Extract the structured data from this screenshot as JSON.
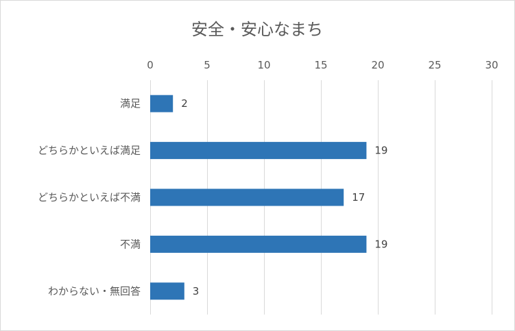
{
  "chart_data": {
    "type": "bar",
    "orientation": "horizontal",
    "title": "安全・安心なまち",
    "xlabel": "",
    "ylabel": "",
    "xlim": [
      0,
      30
    ],
    "ticks": [
      0,
      5,
      10,
      15,
      20,
      25,
      30
    ],
    "grid": true,
    "legend": "none",
    "categories": [
      "満足",
      "どちらかといえば満足",
      "どちらかといえば不満",
      "不満",
      "わからない・無回答"
    ],
    "values": [
      2,
      19,
      17,
      19,
      3
    ],
    "bar_color": "#2e75b6"
  }
}
